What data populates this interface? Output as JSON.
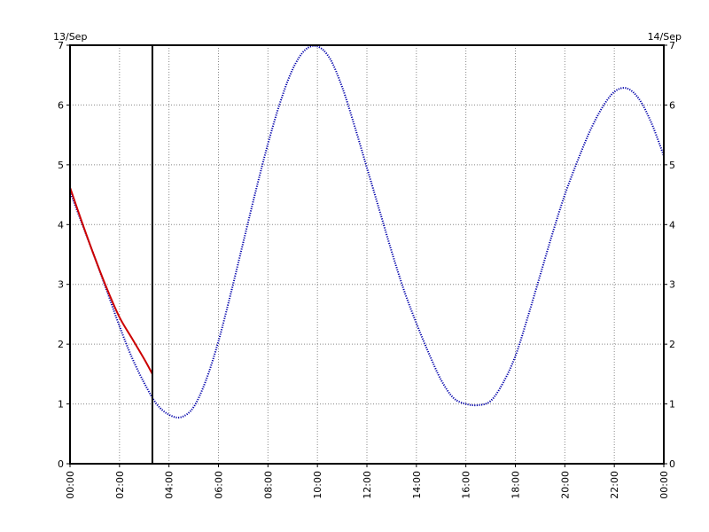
{
  "chart_data": {
    "type": "line",
    "date_left": "13/Sep",
    "date_right": "14/Sep",
    "x_ticks": [
      "00:00",
      "02:00",
      "04:00",
      "06:00",
      "08:00",
      "10:00",
      "12:00",
      "14:00",
      "16:00",
      "18:00",
      "20:00",
      "22:00",
      "00:00"
    ],
    "y_ticks": [
      "0",
      "1",
      "2",
      "3",
      "4",
      "5",
      "6",
      "7"
    ],
    "xlim": [
      0,
      24
    ],
    "ylim": [
      0,
      7
    ],
    "grid": true,
    "current_time_marker": 3.33,
    "series": [
      {
        "color": "#0000aa",
        "style": "dotted",
        "x": [
          0,
          0.5,
          1,
          1.5,
          2,
          2.5,
          3,
          3.5,
          4,
          4.5,
          5,
          5.5,
          6,
          6.5,
          7,
          7.5,
          8,
          8.5,
          9,
          9.5,
          10,
          10.5,
          11,
          11.5,
          12,
          12.5,
          13,
          13.5,
          14,
          14.5,
          15,
          15.5,
          16,
          16.5,
          17,
          17.5,
          18,
          18.5,
          19,
          19.5,
          20,
          20.5,
          21,
          21.5,
          22,
          22.5,
          23,
          23.5,
          24
        ],
        "values": [
          4.55,
          4.0,
          3.45,
          2.88,
          2.3,
          1.78,
          1.35,
          1.0,
          0.82,
          0.78,
          0.95,
          1.4,
          2.05,
          2.85,
          3.7,
          4.55,
          5.35,
          6.05,
          6.6,
          6.92,
          6.98,
          6.78,
          6.3,
          5.65,
          4.95,
          4.25,
          3.55,
          2.9,
          2.35,
          1.85,
          1.4,
          1.1,
          1.0,
          0.98,
          1.05,
          1.35,
          1.8,
          2.45,
          3.15,
          3.85,
          4.5,
          5.05,
          5.55,
          5.95,
          6.22,
          6.28,
          6.1,
          5.7,
          5.15
        ]
      },
      {
        "color": "#cc0000",
        "style": "solid",
        "x": [
          0,
          0.5,
          1,
          1.5,
          2,
          2.5,
          3,
          3.33
        ],
        "values": [
          4.62,
          4.02,
          3.45,
          2.92,
          2.45,
          2.1,
          1.75,
          1.5
        ]
      }
    ]
  }
}
